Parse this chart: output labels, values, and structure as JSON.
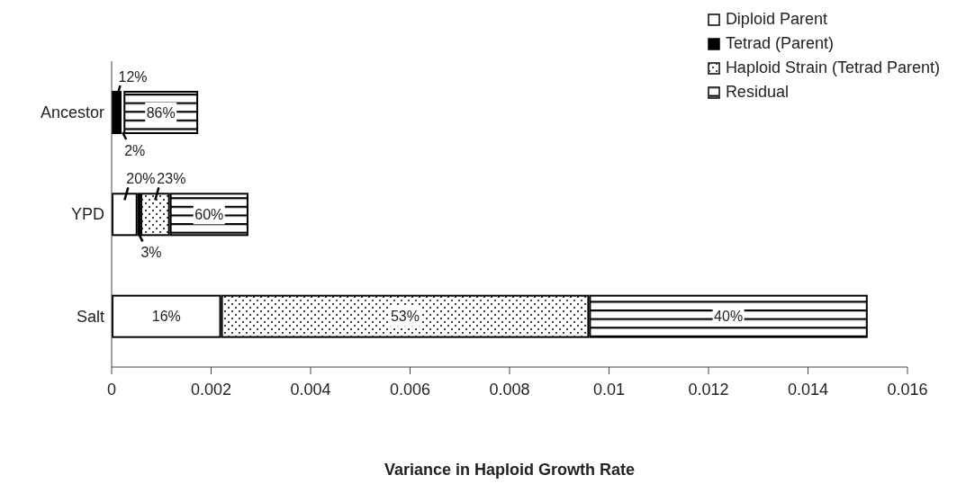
{
  "chart_data": {
    "type": "bar",
    "orientation": "horizontal",
    "stacked": true,
    "xlabel": "Variance in Haploid Growth Rate",
    "categories": [
      "Ancestor",
      "YPD",
      "Salt"
    ],
    "series": [
      {
        "name": "Diploid Parent",
        "color": "#ffffff",
        "values": [
          null,
          0.00052,
          0.0022
        ]
      },
      {
        "name": "Tetrad (Parent)",
        "color": "#000000",
        "values": [
          0.0002,
          6e-05,
          null
        ]
      },
      {
        "name": "Haploid Strain (Tetrad Parent)",
        "color": "#ffffff",
        "values": [
          4e-05,
          0.00059,
          0.0074
        ]
      },
      {
        "name": "Residual",
        "color": "#ffffff",
        "values": [
          0.0015,
          0.00158,
          0.0056
        ]
      }
    ],
    "annotations": [
      "12%",
      "2%",
      "86%",
      "20%",
      "3%",
      "23%",
      "60%",
      "16%",
      "53%",
      "40%"
    ],
    "xlim": [
      0,
      0.016
    ],
    "xticks": [
      0,
      0.002,
      0.004,
      0.006,
      0.008,
      0.01,
      0.012,
      0.014,
      0.016
    ],
    "grid": false,
    "legend": "top right"
  }
}
